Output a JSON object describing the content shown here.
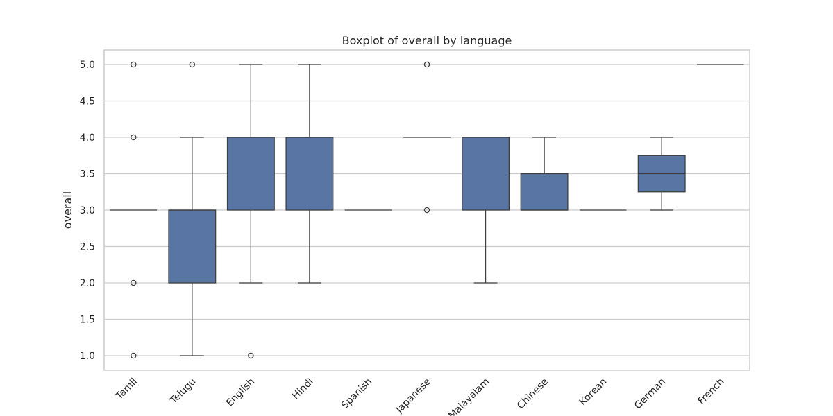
{
  "chart_data": {
    "type": "boxplot",
    "title": "Boxplot of overall by language",
    "xlabel": "",
    "ylabel": "overall",
    "ylim": [
      0.8,
      5.2
    ],
    "yticks": [
      "1.0",
      "1.5",
      "2.0",
      "2.5",
      "3.0",
      "3.5",
      "4.0",
      "4.5",
      "5.0"
    ],
    "grid": true,
    "color": "#5875a4",
    "categories": [
      "Tamil",
      "Telugu",
      "English",
      "Hindi",
      "Spanish",
      "Japanese",
      "Malayalam",
      "Chinese",
      "Korean",
      "German",
      "French"
    ],
    "boxes": [
      {
        "category": "Tamil",
        "min": 3.0,
        "q1": 3.0,
        "median": 3.0,
        "q3": 3.0,
        "max": 3.0,
        "outliers": [
          1.0,
          2.0,
          4.0,
          5.0
        ]
      },
      {
        "category": "Telugu",
        "min": 1.0,
        "q1": 2.0,
        "median": 3.0,
        "q3": 3.0,
        "max": 4.0,
        "outliers": [
          5.0
        ]
      },
      {
        "category": "English",
        "min": 2.0,
        "q1": 3.0,
        "median": 4.0,
        "q3": 4.0,
        "max": 5.0,
        "outliers": [
          1.0
        ]
      },
      {
        "category": "Hindi",
        "min": 2.0,
        "q1": 3.0,
        "median": 4.0,
        "q3": 4.0,
        "max": 5.0,
        "outliers": []
      },
      {
        "category": "Spanish",
        "min": 3.0,
        "q1": 3.0,
        "median": 3.0,
        "q3": 3.0,
        "max": 3.0,
        "outliers": []
      },
      {
        "category": "Japanese",
        "min": 4.0,
        "q1": 4.0,
        "median": 4.0,
        "q3": 4.0,
        "max": 4.0,
        "outliers": [
          3.0,
          5.0
        ]
      },
      {
        "category": "Malayalam",
        "min": 2.0,
        "q1": 3.0,
        "median": 4.0,
        "q3": 4.0,
        "max": 4.0,
        "outliers": []
      },
      {
        "category": "Chinese",
        "min": 3.0,
        "q1": 3.0,
        "median": 3.0,
        "q3": 3.5,
        "max": 4.0,
        "outliers": []
      },
      {
        "category": "Korean",
        "min": 3.0,
        "q1": 3.0,
        "median": 3.0,
        "q3": 3.0,
        "max": 3.0,
        "outliers": []
      },
      {
        "category": "German",
        "min": 3.0,
        "q1": 3.25,
        "median": 3.5,
        "q3": 3.75,
        "max": 4.0,
        "outliers": []
      },
      {
        "category": "French",
        "min": 5.0,
        "q1": 5.0,
        "median": 5.0,
        "q3": 5.0,
        "max": 5.0,
        "outliers": []
      }
    ]
  }
}
